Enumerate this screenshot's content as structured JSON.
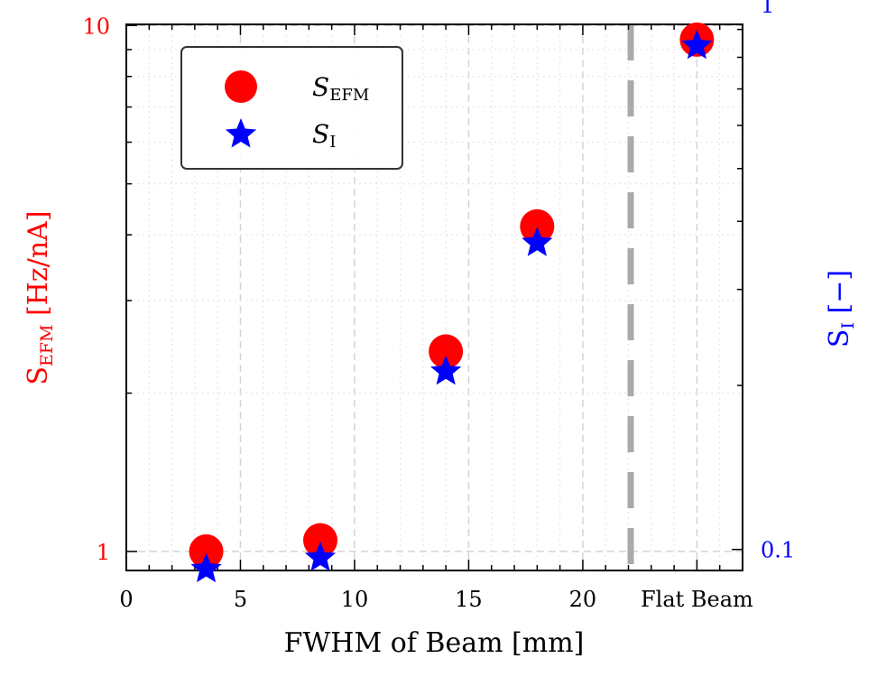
{
  "chart_data": {
    "type": "scatter",
    "title": "",
    "xlabel": "FWHM of Beam [mm]",
    "ylabel_left": {
      "base": "S",
      "sub": "EFM",
      "rest": " [Hz/nA]"
    },
    "ylabel_right": {
      "base": "S",
      "sub": "I",
      "rest": " [−]"
    },
    "xlim": [
      0,
      27
    ],
    "x_ticks": [
      {
        "value": 0,
        "label": "0"
      },
      {
        "value": 5,
        "label": "5"
      },
      {
        "value": 10,
        "label": "10"
      },
      {
        "value": 15,
        "label": "15"
      },
      {
        "value": 20,
        "label": "20"
      },
      {
        "value": 25,
        "label": "Flat Beam"
      }
    ],
    "y_left": {
      "scale": "log",
      "lim": [
        0.92,
        10.05
      ],
      "ticks": [
        {
          "value": 1,
          "label": "1"
        },
        {
          "value": 10,
          "label": "10"
        }
      ],
      "color": "#ff0000"
    },
    "y_right": {
      "scale": "log",
      "lim": [
        0.0915,
        0.9195
      ],
      "ticks": [
        {
          "value": 0.1,
          "label": "0.1"
        },
        {
          "value": 1,
          "label": "1"
        }
      ],
      "color": "#0000ff"
    },
    "vline": {
      "x": 22.1,
      "color": "#aaaaaa",
      "style": "dashed"
    },
    "grid": true,
    "legend": {
      "placement": "top-left",
      "items": [
        {
          "base": "S",
          "sub": "EFM",
          "marker": "circle",
          "color": "#ff0000"
        },
        {
          "base": "S",
          "sub": "I",
          "marker": "star",
          "color": "#0000ff"
        }
      ]
    },
    "series": [
      {
        "marker": "circle",
        "color": "#ff0000",
        "axis": "left",
        "x": [
          3.5,
          8.5,
          14,
          18,
          25
        ],
        "y": [
          1.0,
          1.05,
          2.4,
          4.15,
          9.4
        ]
      },
      {
        "marker": "star",
        "color": "#0000ff",
        "axis": "right",
        "x": [
          3.5,
          8.5,
          14,
          18,
          25
        ],
        "y": [
          0.092,
          0.0965,
          0.212,
          0.365,
          0.84
        ]
      }
    ]
  }
}
